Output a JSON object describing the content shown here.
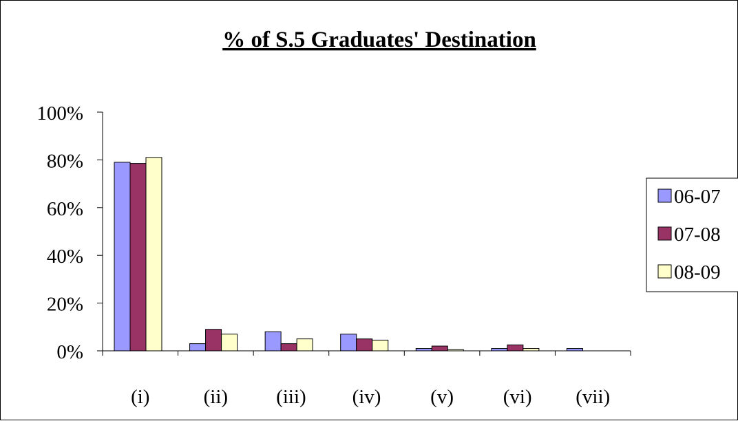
{
  "chart_data": {
    "type": "bar",
    "title": "% of S.5 Graduates' Destination",
    "categories": [
      "(i)",
      "(ii)",
      "(iii)",
      "(iv)",
      "(v)",
      "(vi)",
      "(vii)"
    ],
    "series": [
      {
        "name": "06-07",
        "color": "#9999ff",
        "values": [
          79,
          3,
          8,
          7,
          1,
          1,
          1
        ]
      },
      {
        "name": "07-08",
        "color": "#993366",
        "values": [
          78.5,
          9,
          3,
          5,
          2,
          2.5,
          0
        ]
      },
      {
        "name": "08-09",
        "color": "#ffffcc",
        "values": [
          81,
          7,
          5,
          4.5,
          0.5,
          1,
          0
        ]
      }
    ],
    "ylim": [
      0,
      100
    ],
    "y_ticks": [
      0,
      20,
      40,
      60,
      80,
      100
    ],
    "y_tick_labels": [
      "0%",
      "20%",
      "40%",
      "60%",
      "80%",
      "100%"
    ],
    "grid": false,
    "legend_position": "right",
    "xlabel": "",
    "ylabel": ""
  }
}
